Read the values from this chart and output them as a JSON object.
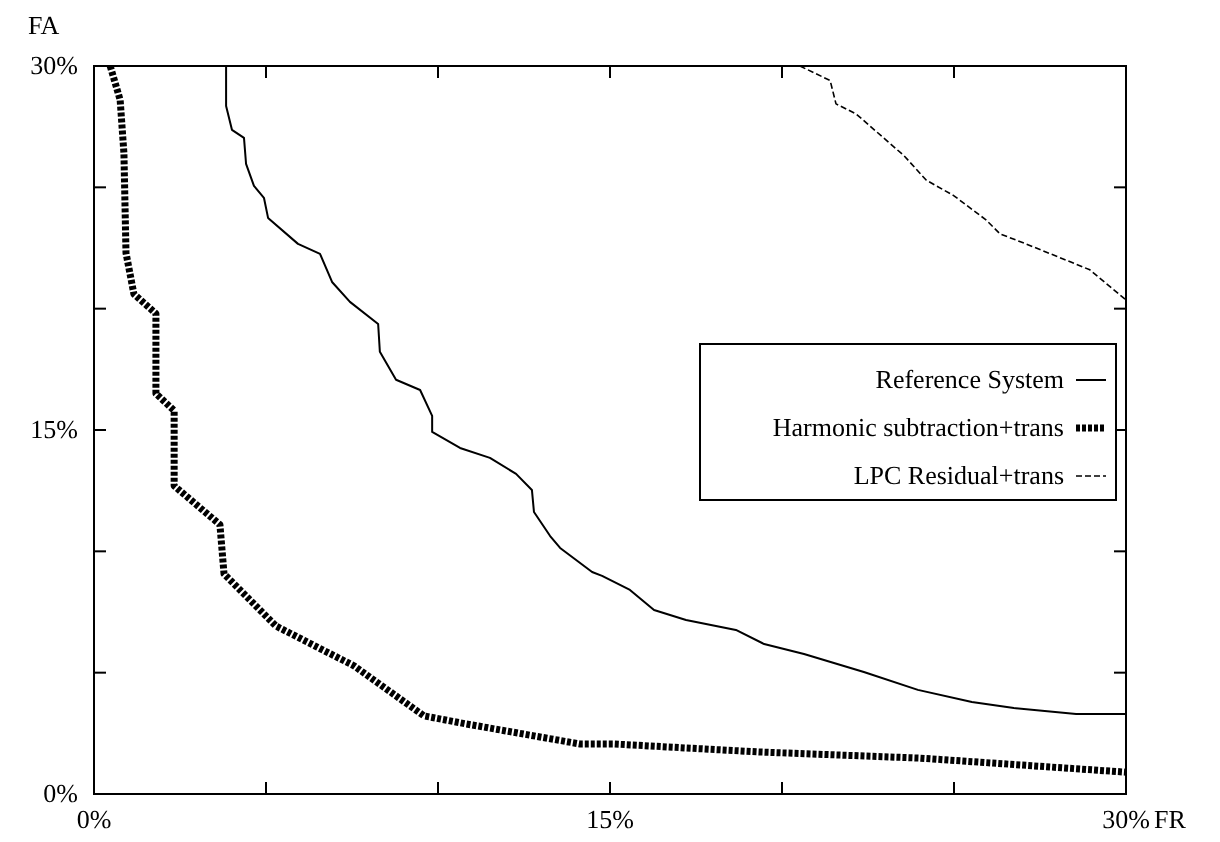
{
  "chart_data": {
    "type": "line",
    "xlabel": "FR",
    "ylabel": "FA",
    "xlim": [
      0,
      30
    ],
    "ylim": [
      0,
      30
    ],
    "xticks": [
      {
        "value": 0,
        "label": "0%"
      },
      {
        "value": 5,
        "label": null
      },
      {
        "value": 10,
        "label": null
      },
      {
        "value": 15,
        "label": "15%"
      },
      {
        "value": 20,
        "label": null
      },
      {
        "value": 25,
        "label": null
      },
      {
        "value": 30,
        "label": "30%"
      }
    ],
    "yticks": [
      {
        "value": 0,
        "label": "0%"
      },
      {
        "value": 5,
        "label": null
      },
      {
        "value": 10,
        "label": null
      },
      {
        "value": 15,
        "label": "15%"
      },
      {
        "value": 20,
        "label": null
      },
      {
        "value": 25,
        "label": null
      },
      {
        "value": 30,
        "label": "30%"
      }
    ],
    "grid": false,
    "legend": "right",
    "marker": "none",
    "series": [
      {
        "name": "Reference System",
        "color": "#000000",
        "line_style": "solid",
        "x": [
          3.84,
          3.84,
          4.01,
          4.36,
          4.42,
          4.65,
          4.94,
          5.06,
          5.93,
          6.57,
          6.92,
          7.44,
          8.26,
          8.31,
          8.78,
          9.48,
          9.83,
          9.83,
          10.64,
          11.51,
          12.27,
          12.73,
          12.79,
          13.26,
          13.55,
          14.48,
          14.77,
          15.58,
          16.28,
          17.21,
          18.66,
          19.48,
          20.64,
          22.38,
          23.95,
          25.52,
          26.74,
          28.55,
          30
        ],
        "values": [
          30,
          28.35,
          27.37,
          27.04,
          25.97,
          25.06,
          24.57,
          23.74,
          22.67,
          22.26,
          21.1,
          20.28,
          19.37,
          18.22,
          17.07,
          16.65,
          15.58,
          14.92,
          14.26,
          13.85,
          13.19,
          12.53,
          11.62,
          10.63,
          10.14,
          9.15,
          8.99,
          8.41,
          7.58,
          7.17,
          6.76,
          6.18,
          5.77,
          5.03,
          4.29,
          3.79,
          3.54,
          3.3,
          3.3
        ]
      },
      {
        "name": "Harmonic subtraction+trans",
        "color": "#000000",
        "line_style": "dotted",
        "x": [
          0.47,
          0.76,
          0.87,
          0.93,
          1.16,
          1.8,
          1.8,
          2.33,
          2.33,
          3.66,
          3.78,
          5.29,
          7.56,
          9.59,
          10.81,
          14.13,
          15.12,
          19.36,
          24.0,
          30
        ],
        "values": [
          30,
          28.6,
          26.4,
          22.3,
          20.6,
          19.8,
          16.5,
          15.8,
          12.7,
          11.1,
          9.07,
          6.92,
          5.28,
          3.22,
          2.89,
          2.06,
          2.06,
          1.73,
          1.48,
          0.9
        ]
      },
      {
        "name": "LPC Residual+trans",
        "color": "#000000",
        "line_style": "dashed",
        "x": [
          20.52,
          21.4,
          21.57,
          22.15,
          23.55,
          24.19,
          25.0,
          25.93,
          26.34,
          27.09,
          28.95,
          30
        ],
        "values": [
          30,
          29.4,
          28.44,
          28.03,
          26.3,
          25.3,
          24.65,
          23.66,
          23.08,
          22.67,
          21.6,
          20.36
        ]
      }
    ]
  }
}
